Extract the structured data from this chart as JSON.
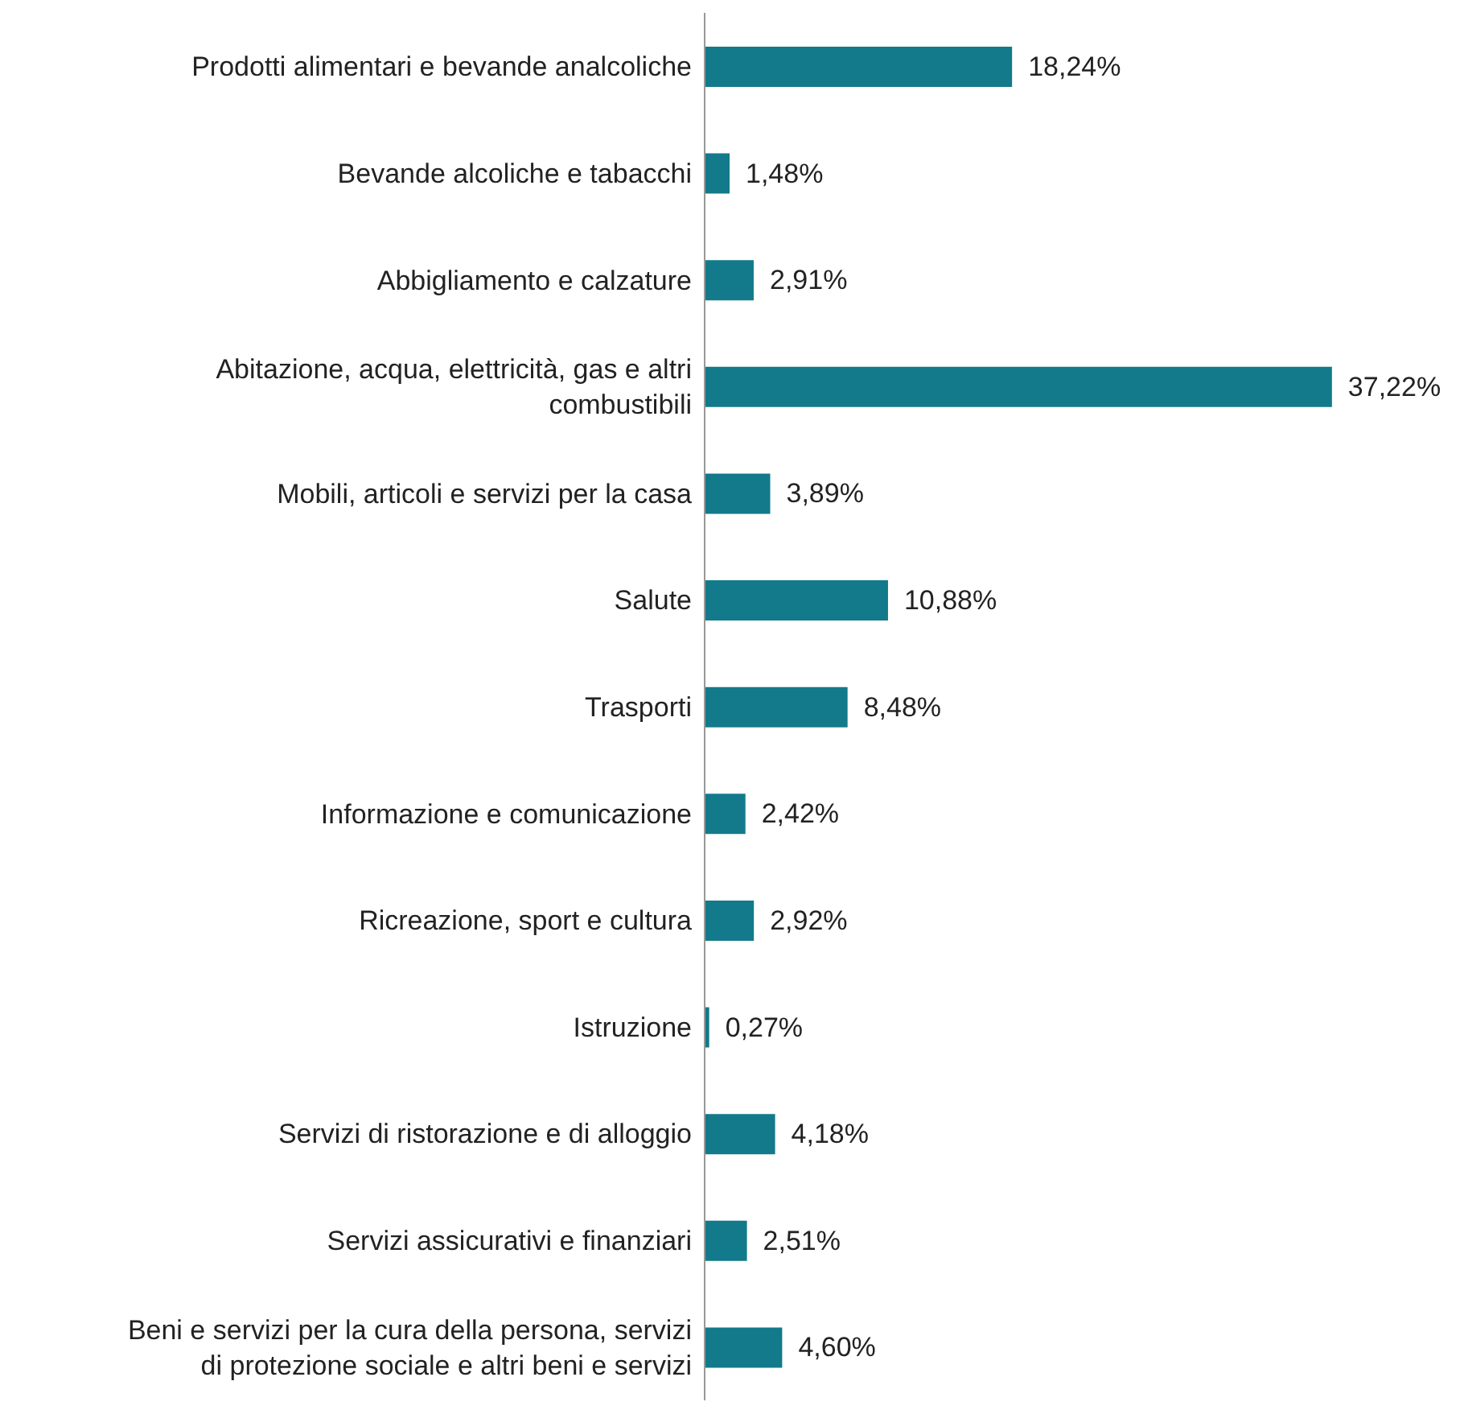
{
  "chart_data": {
    "type": "bar",
    "orientation": "horizontal",
    "categories": [
      "Prodotti alimentari e bevande analcoliche",
      "Bevande alcoliche e tabacchi",
      "Abbigliamento e calzature",
      "Abitazione, acqua, elettricità, gas e altri combustibili",
      "Mobili, articoli e servizi per la casa",
      "Salute",
      "Trasporti",
      "Informazione e comunicazione",
      "Ricreazione, sport e cultura",
      "Istruzione",
      "Servizi di ristorazione e di alloggio",
      "Servizi assicurativi e finanziari",
      "Beni e servizi per la cura della persona, servizi di protezione sociale e altri beni e servizi"
    ],
    "values": [
      18.24,
      1.48,
      2.91,
      37.22,
      3.89,
      10.88,
      8.48,
      2.42,
      2.92,
      0.27,
      4.18,
      2.51,
      4.6
    ],
    "value_labels": [
      "18,24%",
      "1,48%",
      "2,91%",
      "37,22%",
      "3,89%",
      "10,88%",
      "8,48%",
      "2,42%",
      "2,92%",
      "0,27%",
      "4,18%",
      "2,51%",
      "4,60%"
    ],
    "color": "#127a8a",
    "grid": false,
    "legend": false
  }
}
